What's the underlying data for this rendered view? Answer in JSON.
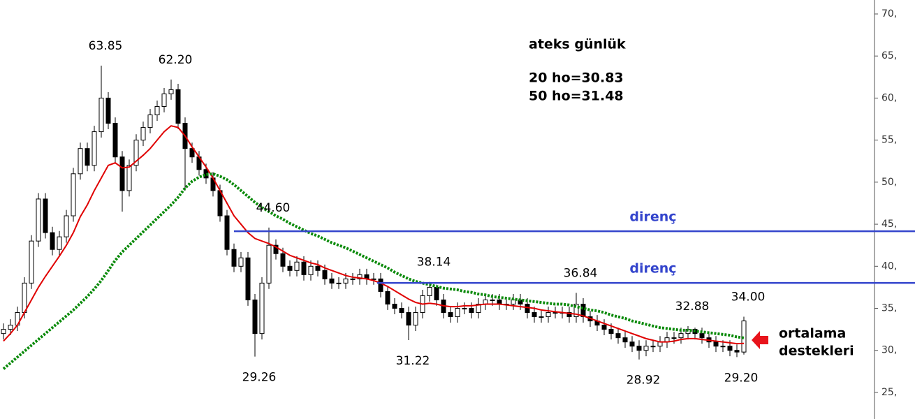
{
  "chart_data": {
    "type": "candlestick",
    "info": [
      "ateks günlük",
      "20 ho=30.83",
      "50 ho=31.48"
    ],
    "open": [
      32,
      32.5,
      33,
      34.5,
      38,
      43,
      48,
      44,
      42,
      43.5,
      46,
      51,
      54,
      52,
      56,
      60,
      57,
      53,
      49,
      52,
      55,
      56.5,
      58,
      59,
      60.5,
      61,
      57,
      54,
      53,
      51.5,
      50.5,
      49,
      46,
      42,
      40,
      41,
      36,
      32,
      38,
      42.5,
      41.5,
      40,
      39.5,
      40.5,
      39,
      40,
      39.5,
      38.5,
      38,
      38,
      38.5,
      38.5,
      39,
      38.5,
      38.5,
      37,
      35.5,
      35,
      34.5,
      33,
      34.5,
      36.5,
      37.5,
      36,
      34.5,
      34,
      35,
      35,
      34.5,
      35.5,
      36,
      36,
      35.5,
      35.5,
      36,
      35.5,
      34.5,
      34,
      34,
      34.5,
      34.5,
      34.5,
      34,
      35.5,
      34,
      33.5,
      33,
      32.5,
      32,
      31.5,
      31,
      30.5,
      30,
      30.5,
      30.5,
      31,
      31.5,
      31.5,
      32,
      32.5,
      32,
      31.5,
      31,
      30.5,
      30.5,
      30,
      29.8
    ],
    "high": [
      33.2,
      33.7,
      35.2,
      38.7,
      43.7,
      48.7,
      48.7,
      44.7,
      44.2,
      46.7,
      51.7,
      54.7,
      54.7,
      56.7,
      63.85,
      60.7,
      57.7,
      53.7,
      52.7,
      55.7,
      57.2,
      58.7,
      59.7,
      61.2,
      62.2,
      61.7,
      57.7,
      54.7,
      53.7,
      52.2,
      51.2,
      49.7,
      46.7,
      42.7,
      41.7,
      41.7,
      36.7,
      38.7,
      44.6,
      43.2,
      42.2,
      40.7,
      41.2,
      41.2,
      40.7,
      40.7,
      40.2,
      39.2,
      38.7,
      39.2,
      39.2,
      39.7,
      39.7,
      39.2,
      39.2,
      37.7,
      36.2,
      35.7,
      35.2,
      35.2,
      37.2,
      38.14,
      37.8,
      36.7,
      35.2,
      35.7,
      35.7,
      35.7,
      36.2,
      36.7,
      36.7,
      36.7,
      36.2,
      36.7,
      36.7,
      36.2,
      35.2,
      34.7,
      35.2,
      35.2,
      35.2,
      35.2,
      36.84,
      36.2,
      34.7,
      34.2,
      33.7,
      33.2,
      32.7,
      32.2,
      31.7,
      31.2,
      31.2,
      31.2,
      31.7,
      32.2,
      32.2,
      32.7,
      32.88,
      32.7,
      32.7,
      32.2,
      31.7,
      31.2,
      31.2,
      30.7,
      34
    ],
    "low": [
      31.3,
      31.8,
      32.3,
      33.8,
      37.3,
      42.3,
      43.3,
      41.3,
      41.3,
      42.8,
      45.3,
      50.3,
      51.3,
      51.3,
      55.3,
      56.3,
      52.3,
      46.5,
      48.3,
      51.3,
      54.3,
      55.8,
      57.3,
      58.3,
      59.8,
      56.3,
      49,
      52.3,
      50.8,
      49.8,
      48.3,
      45.3,
      41.3,
      39.3,
      39.3,
      35.3,
      29.26,
      31.3,
      37.3,
      40.8,
      39.3,
      38.8,
      38.8,
      38.3,
      38.3,
      38.8,
      37.8,
      37.3,
      37.3,
      37.3,
      37.8,
      37.8,
      37.8,
      37.8,
      36.3,
      34.8,
      34.3,
      33.8,
      31.22,
      32.3,
      33.8,
      35.8,
      35.3,
      33.8,
      33.3,
      33.3,
      34.3,
      33.8,
      33.8,
      34.8,
      35.3,
      34.8,
      34.8,
      34.8,
      34.8,
      33.8,
      33.3,
      33.3,
      33.3,
      33.8,
      33.8,
      33.3,
      33.3,
      33.3,
      32.8,
      32.3,
      31.8,
      31.3,
      30.8,
      30.3,
      29.8,
      28.92,
      29.3,
      29.8,
      29.8,
      30.3,
      30.8,
      30.8,
      31.3,
      31.3,
      30.8,
      30.3,
      29.8,
      29.8,
      29.3,
      29.2,
      29.5
    ],
    "close": [
      32.5,
      33,
      34.5,
      38,
      43,
      48,
      44,
      42,
      43.5,
      46,
      51,
      54,
      52,
      56,
      60,
      57,
      53,
      49,
      52,
      55,
      56.5,
      58,
      59,
      60.5,
      61,
      57,
      54,
      53,
      51.5,
      50.5,
      49,
      46,
      42,
      40,
      41,
      36,
      32,
      38,
      42.5,
      41.5,
      40,
      39.5,
      40.5,
      39,
      40,
      39.5,
      38.5,
      38,
      38,
      38.5,
      38.5,
      39,
      38.5,
      38.5,
      37,
      35.5,
      35,
      34.5,
      33,
      34.5,
      36.5,
      37.5,
      36,
      34.5,
      34,
      35,
      35,
      34.5,
      35.5,
      36,
      36,
      35.5,
      35.5,
      36,
      35.5,
      34.5,
      34,
      34,
      34.5,
      34.5,
      34.5,
      34,
      35.5,
      34,
      33.5,
      33,
      32.5,
      32,
      31.5,
      31,
      30.5,
      30,
      30.5,
      30.5,
      31,
      31.5,
      31.5,
      32,
      32.5,
      32,
      31.5,
      31,
      30.5,
      30.5,
      30,
      29.8,
      33.5
    ],
    "series": [
      {
        "color": "#e00000",
        "values": [
          31.1,
          32,
          33,
          34.5,
          36,
          37.5,
          38.8,
          40,
          41.2,
          42.5,
          44,
          45.9,
          47.3,
          49,
          50.5,
          52,
          52.3,
          51.7,
          51.8,
          52.5,
          53.2,
          54,
          55,
          56,
          56.7,
          56.5,
          55.5,
          54.2,
          53,
          51.8,
          50.5,
          49,
          47.5,
          46,
          45,
          44,
          43.3,
          43,
          42.7,
          42.3,
          41.8,
          41.3,
          41,
          40.7,
          40.4,
          40.2,
          39.8,
          39.5,
          39.2,
          38.9,
          38.7,
          38.6,
          38.5,
          38.3,
          38,
          37.6,
          37.1,
          36.6,
          36.1,
          35.7,
          35.5,
          35.6,
          35.5,
          35.3,
          35.2,
          35.2,
          35.3,
          35.3,
          35.4,
          35.5,
          35.5,
          35.5,
          35.4,
          35.3,
          35.2,
          35.1,
          35,
          34.8,
          34.7,
          34.6,
          34.5,
          34.4,
          34.3,
          34.1,
          33.8,
          33.5,
          33.2,
          32.9,
          32.6,
          32.3,
          32,
          31.7,
          31.4,
          31.2,
          31,
          31,
          31.1,
          31.3,
          31.4,
          31.4,
          31.3,
          31.2,
          31.1,
          31,
          30.9,
          30.8,
          30.83
        ]
      },
      {
        "color": "#0a8a0a",
        "style": "dotted",
        "values": [
          27.8,
          28.5,
          29.2,
          29.9,
          30.6,
          31.3,
          32,
          32.7,
          33.4,
          34.1,
          34.8,
          35.6,
          36.4,
          37.3,
          38.3,
          39.5,
          40.7,
          41.7,
          42.5,
          43.3,
          44.1,
          44.9,
          45.7,
          46.5,
          47.3,
          48.2,
          49.3,
          50.1,
          50.6,
          50.9,
          51,
          50.7,
          50.3,
          49.7,
          49,
          48.3,
          47.6,
          47,
          46.5,
          46,
          45.6,
          45.1,
          44.7,
          44.3,
          43.9,
          43.6,
          43.2,
          42.8,
          42.5,
          42.2,
          41.8,
          41.4,
          41,
          40.6,
          40.2,
          39.8,
          39.3,
          38.9,
          38.5,
          38.2,
          38,
          37.8,
          37.6,
          37.4,
          37.3,
          37.2,
          37,
          36.9,
          36.7,
          36.6,
          36.4,
          36.3,
          36.2,
          36.1,
          36,
          35.9,
          35.8,
          35.7,
          35.6,
          35.5,
          35.5,
          35.4,
          35.2,
          35,
          34.8,
          34.7,
          34.5,
          34.2,
          34,
          33.8,
          33.5,
          33.3,
          33.1,
          32.9,
          32.7,
          32.6,
          32.5,
          32.4,
          32.4,
          32.3,
          32.2,
          32.1,
          32,
          31.9,
          31.8,
          31.6,
          31.48
        ]
      }
    ],
    "levels": [
      {
        "value": 44.17,
        "label": "direnç"
      },
      {
        "value": 38.02,
        "label": "direnç"
      }
    ],
    "level_color": "#3344cc",
    "annotations": [
      "63.85",
      "62.20",
      "44.60",
      "38.14",
      "36.84",
      "32.88",
      "34.00",
      "29.26",
      "31.22",
      "28.92",
      "29.20"
    ],
    "note": [
      "ortalama",
      "destekleri"
    ],
    "ylim": [
      21.84,
      71.66
    ],
    "yticks": [
      {
        "value": 25,
        "label": "25,"
      },
      {
        "value": 30,
        "label": "30,"
      },
      {
        "value": 35,
        "label": "35,"
      },
      {
        "value": 40,
        "label": "40,"
      },
      {
        "value": 45,
        "label": "45,"
      },
      {
        "value": 50,
        "label": "50,"
      },
      {
        "value": 55,
        "label": "55,"
      },
      {
        "value": 60,
        "label": "60,"
      },
      {
        "value": 65,
        "label": "65,"
      },
      {
        "value": 70,
        "label": "70,"
      }
    ]
  }
}
